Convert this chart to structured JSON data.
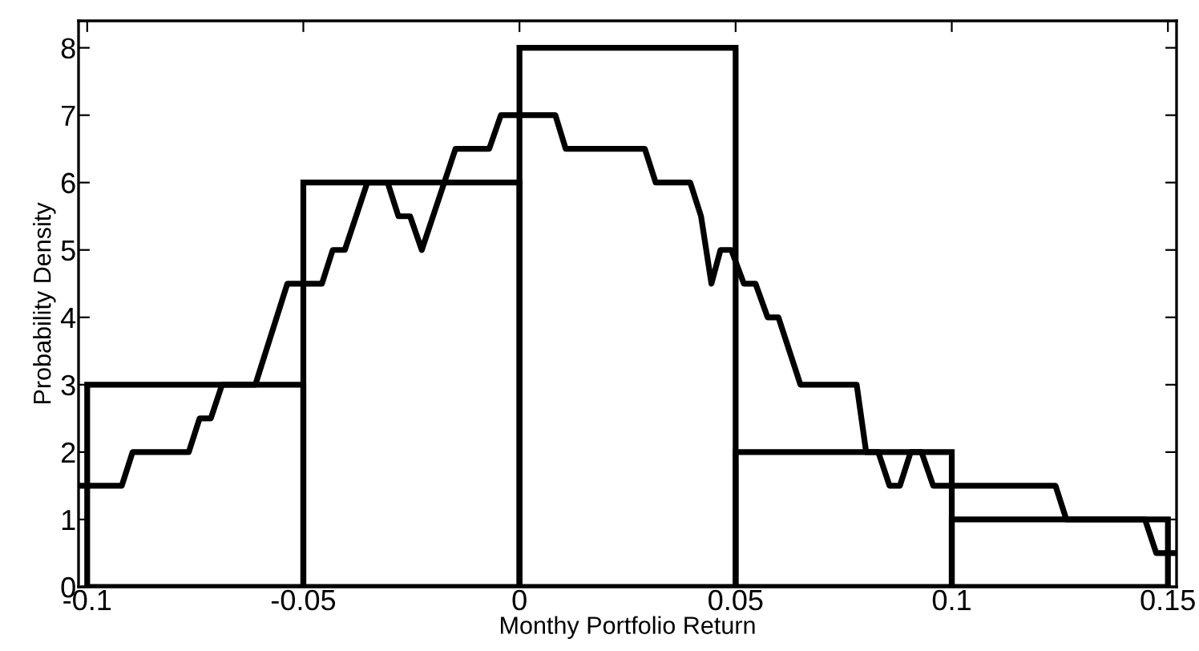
{
  "chart_data": {
    "type": "histogram",
    "xlabel": "Monthy Portfolio Return",
    "ylabel": "Probability Density",
    "bins": [
      -0.1,
      -0.05,
      0,
      0.05,
      0.1,
      0.15
    ],
    "series": [
      {
        "color": "#000000",
        "values": [
          3,
          6,
          8,
          2,
          1
        ]
      },
      {
        "type": "line",
        "color": "#000000",
        "x": [
          -0.102,
          -0.092,
          -0.0895,
          -0.0765,
          -0.074,
          -0.0714,
          -0.0688,
          -0.0611,
          -0.0537,
          -0.0457,
          -0.0432,
          -0.0404,
          -0.0352,
          -0.0305,
          -0.028,
          -0.0253,
          -0.0226,
          -0.0148,
          -0.007,
          -0.0043,
          0.0083,
          0.0107,
          0.029,
          0.0315,
          0.0395,
          0.042,
          0.0444,
          0.0465,
          0.049,
          0.0519,
          0.0546,
          0.0574,
          0.0599,
          0.065,
          0.078,
          0.0802,
          0.083,
          0.0856,
          0.088,
          0.0905,
          0.093,
          0.0957,
          0.124,
          0.1265,
          0.1447,
          0.1473,
          0.152
        ],
        "values": [
          1.5,
          1.5,
          2,
          2,
          2.5,
          2.5,
          3,
          3,
          4.5,
          4.5,
          5,
          5,
          6,
          6,
          5.5,
          5.5,
          5,
          6.5,
          6.5,
          7,
          7,
          6.5,
          6.5,
          6,
          6,
          5.5,
          4.5,
          5,
          5,
          4.5,
          4.5,
          4,
          4,
          3,
          3,
          2,
          2,
          1.5,
          1.5,
          2,
          2,
          1.5,
          1.5,
          1,
          1,
          0.5,
          0.5
        ]
      }
    ],
    "xlim": [
      -0.102,
      0.152
    ],
    "xticks": [
      {
        "value": -0.1,
        "label": "-0.1"
      },
      {
        "value": -0.05,
        "label": "-0.05"
      },
      0,
      0.05,
      0.1,
      0.15
    ],
    "ylim": [
      0,
      8.4
    ],
    "yticks": [
      0,
      1,
      2,
      3,
      4,
      5,
      6,
      7,
      8
    ],
    "grid": false,
    "legend": false,
    "line_style": "solid",
    "marker": "none"
  }
}
